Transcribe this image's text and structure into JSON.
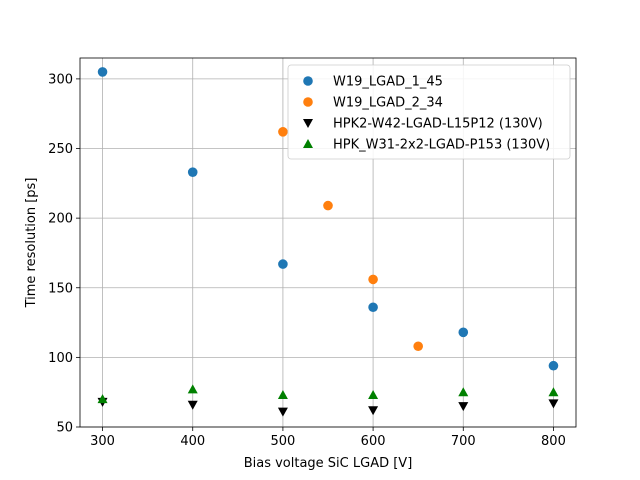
{
  "chart_data": {
    "type": "scatter",
    "title": "",
    "xlabel": "Bias voltage SiC LGAD [V]",
    "ylabel": "Time resolution [ps]",
    "xlim": [
      275,
      825
    ],
    "ylim": [
      50,
      315
    ],
    "xticks": [
      300,
      400,
      500,
      600,
      700,
      800
    ],
    "yticks": [
      50,
      100,
      150,
      200,
      250,
      300
    ],
    "grid": true,
    "legend_position": "top-right",
    "series": [
      {
        "name": "W19_LGAD_1_45",
        "marker": "circle",
        "color": "#1f77b4",
        "x": [
          300,
          400,
          500,
          600,
          700,
          800
        ],
        "y": [
          305,
          233,
          167,
          136,
          118,
          94
        ]
      },
      {
        "name": "W19_LGAD_2_34",
        "marker": "circle",
        "color": "#ff7f0e",
        "x": [
          500,
          550,
          600,
          650
        ],
        "y": [
          262,
          209,
          156,
          108
        ]
      },
      {
        "name": "HPK2-W42-LGAD-L15P12 (130V)",
        "marker": "triangle-down",
        "color": "#000000",
        "x": [
          300,
          400,
          500,
          600,
          700,
          800
        ],
        "y": [
          68,
          66,
          61,
          62,
          65,
          67
        ]
      },
      {
        "name": "HPK_W31-2x2-LGAD-P153 (130V)",
        "marker": "triangle-up",
        "color": "#008000",
        "x": [
          300,
          400,
          500,
          600,
          700,
          800
        ],
        "y": [
          70,
          77,
          73,
          73,
          75,
          75
        ]
      }
    ]
  }
}
